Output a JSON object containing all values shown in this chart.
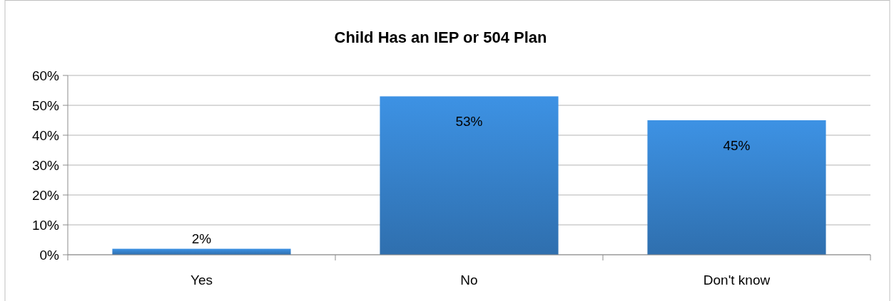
{
  "chart_data": {
    "type": "bar",
    "title": "Child Has an IEP or 504 Plan",
    "categories": [
      "Yes",
      "No",
      "Don't know"
    ],
    "values": [
      2,
      53,
      45
    ],
    "color": "#3a8ad8",
    "value_labels": [
      "2%",
      "53%",
      "45%"
    ],
    "ylim": [
      0,
      60
    ],
    "yticks": [
      {
        "value": 0,
        "label": "0%"
      },
      {
        "value": 10,
        "label": "10%"
      },
      {
        "value": 20,
        "label": "20%"
      },
      {
        "value": 30,
        "label": "30%"
      },
      {
        "value": 40,
        "label": "40%"
      },
      {
        "value": 50,
        "label": "50%"
      },
      {
        "value": 60,
        "label": "60%"
      }
    ],
    "grid": "y"
  }
}
